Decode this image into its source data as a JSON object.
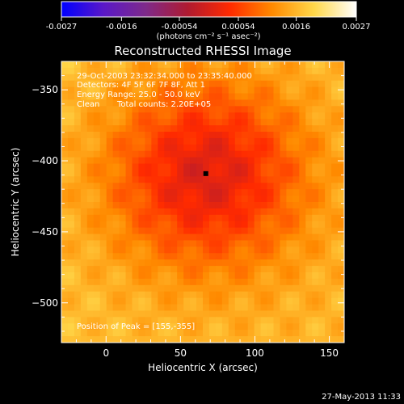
{
  "chart_data": {
    "type": "heatmap",
    "title": "Reconstructed RHESSI Image",
    "xlabel": "Heliocentric X (arcsec)",
    "ylabel": "Heliocentric Y (arcsec)",
    "xlim": [
      -30,
      160
    ],
    "ylim": [
      -528,
      -330
    ],
    "x_ticks": [
      0,
      50,
      100,
      150
    ],
    "y_ticks": [
      -350,
      -400,
      -450,
      -500
    ],
    "colorbar": {
      "min": -0.0027,
      "max": 0.0027,
      "ticks": [
        "-0.0027",
        "-0.0016",
        "-0.00054",
        "0.00054",
        "0.0016",
        "0.0027"
      ],
      "units_label": "(photons cm⁻² s⁻¹ asec⁻²)",
      "colormap": [
        "#0000ff",
        "#5a18c8",
        "#7e2a8a",
        "#b01a30",
        "#ff2a00",
        "#ff8a00",
        "#ffd84a",
        "#ffffff"
      ]
    },
    "annotations": [
      "29-Oct-2003 23:32:34.000 to 23:35:40.000",
      "Detectors: 4F 5F 6F 7F 8F, Att 1",
      "Energy Range: 25.0 - 50.0 keV",
      "Clean",
      "Total counts: 2.20E+05",
      "Position of Peak = [155,-355]"
    ],
    "marker": {
      "x": 67,
      "y": -409
    }
  },
  "footer_timestamp": "27-May-2013 11:33"
}
